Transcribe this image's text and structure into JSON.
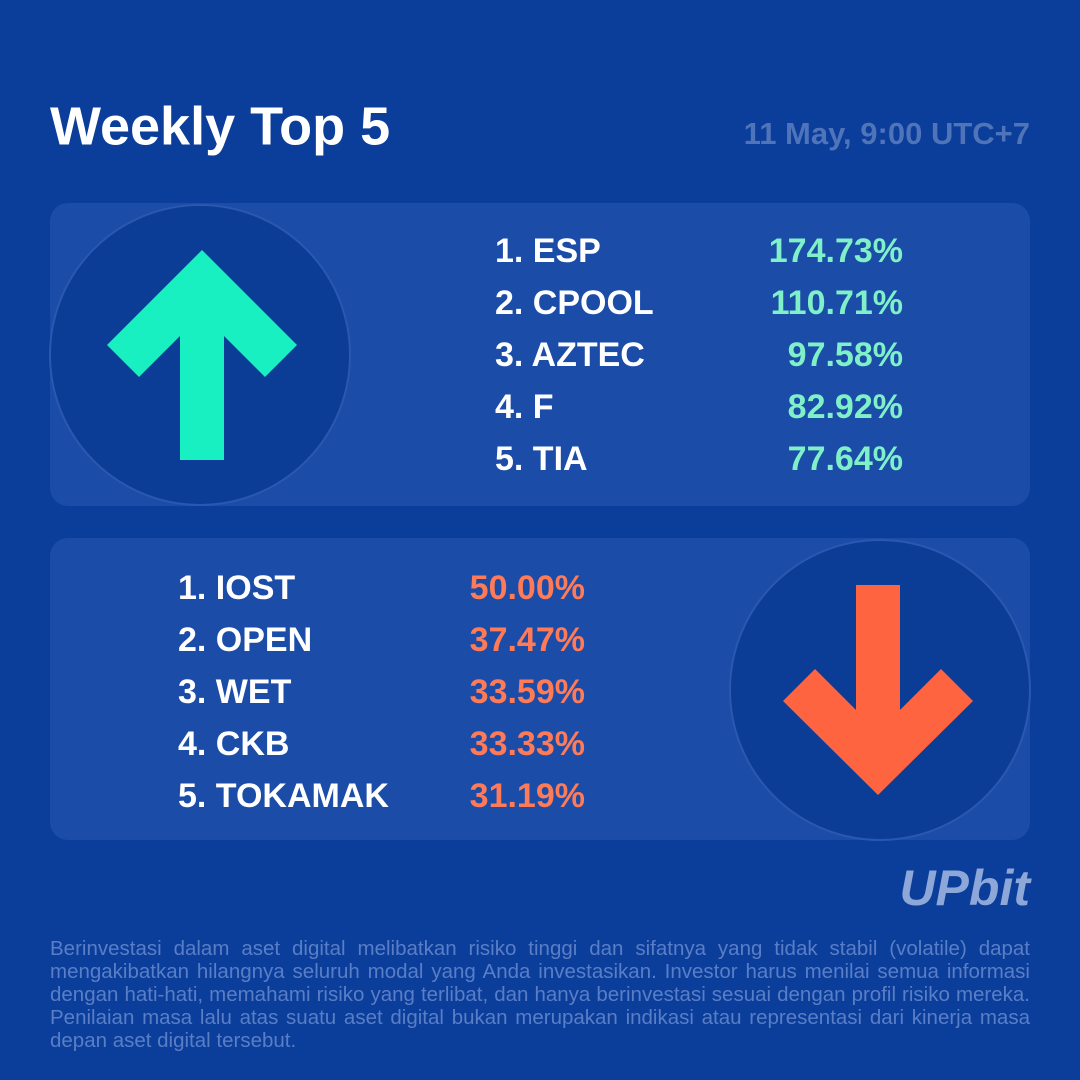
{
  "header": {
    "title": "Weekly Top 5",
    "date": "11 May, 9:00 UTC+7"
  },
  "gainers": [
    {
      "name": "1. ESP",
      "change": "174.73%"
    },
    {
      "name": "2. CPOOL",
      "change": "110.71%"
    },
    {
      "name": "3. AZTEC",
      "change": "97.58%"
    },
    {
      "name": "4. F",
      "change": "82.92%"
    },
    {
      "name": "5. TIA",
      "change": "77.64%"
    }
  ],
  "losers": [
    {
      "name": "1. IOST",
      "change": "50.00%"
    },
    {
      "name": "2. OPEN",
      "change": "37.47%"
    },
    {
      "name": "3. WET",
      "change": "33.59%"
    },
    {
      "name": "4. CKB",
      "change": "33.33%"
    },
    {
      "name": "5. TOKAMAK",
      "change": "31.19%"
    }
  ],
  "logo": "UPbit",
  "disclaimer": "Berinvestasi dalam aset digital melibatkan risiko tinggi dan sifatnya yang tidak stabil (volatile) dapat mengakibatkan hilangnya seluruh modal yang Anda investasikan. Investor harus menilai semua informasi dengan hati-hati, memahami risiko yang terlibat, dan hanya berinvestasi sesuai dengan profil risiko mereka. Penilaian masa lalu atas suatu aset digital bukan merupakan indikasi atau representasi dari kinerja masa depan aset digital tersebut."
}
